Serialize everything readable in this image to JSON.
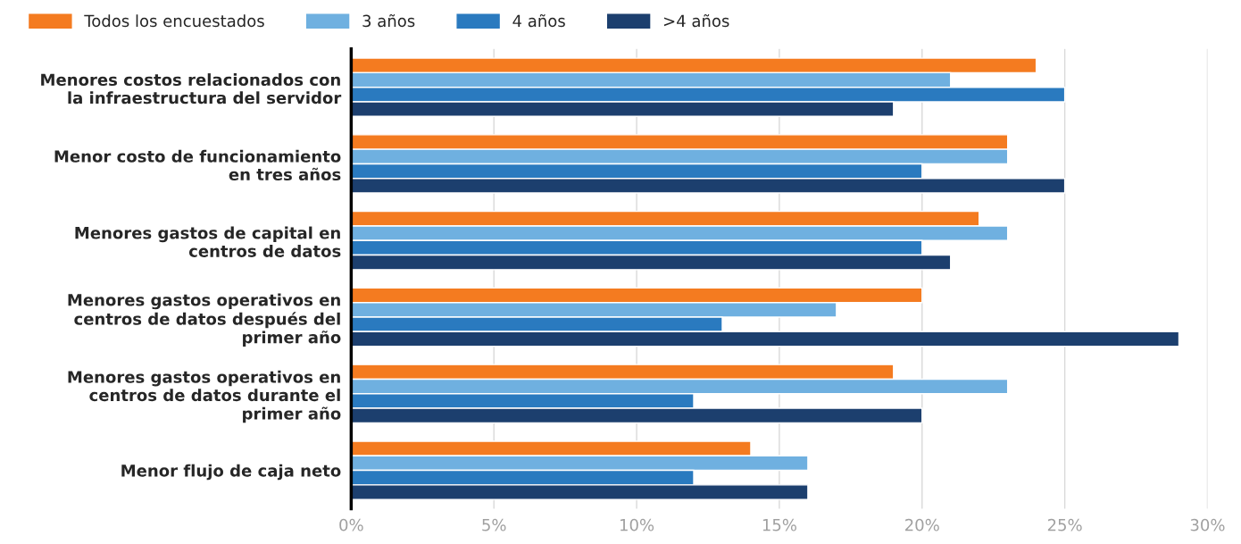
{
  "chart_data": {
    "type": "bar",
    "orientation": "horizontal",
    "categories": [
      "Menores costos relacionados con\nla infraestructura del servidor",
      "Menor costo de funcionamiento\nen tres años",
      "Menores gastos de capital en\ncentros de datos",
      "Menores gastos operativos en\ncentros de datos después del\nprimer año",
      "Menores gastos operativos en\ncentros de datos durante el\nprimer año",
      "Menor flujo de caja neto"
    ],
    "series": [
      {
        "name": "Todos los encuestados",
        "color": "#f47b20",
        "values": [
          24,
          23,
          22,
          20,
          19,
          14
        ]
      },
      {
        "name": "3 años",
        "color": "#6fb0e0",
        "values": [
          21,
          23,
          23,
          17,
          23,
          16
        ]
      },
      {
        "name": "4 años",
        "color": "#2a7abf",
        "values": [
          25,
          20,
          20,
          13,
          12,
          12
        ]
      },
      {
        "name": ">4 años",
        "color": "#1c3f6e",
        "values": [
          19,
          25,
          21,
          29,
          20,
          16
        ]
      }
    ],
    "xlim": [
      0,
      30
    ],
    "xticks": [
      {
        "value": 0,
        "label": "0%"
      },
      {
        "value": 5,
        "label": "5%"
      },
      {
        "value": 10,
        "label": "10%"
      },
      {
        "value": 15,
        "label": "15%"
      },
      {
        "value": 20,
        "label": "20%"
      },
      {
        "value": 25,
        "label": "25%"
      },
      {
        "value": 30,
        "label": "30%"
      }
    ],
    "grid": "x",
    "legend": "top left"
  }
}
